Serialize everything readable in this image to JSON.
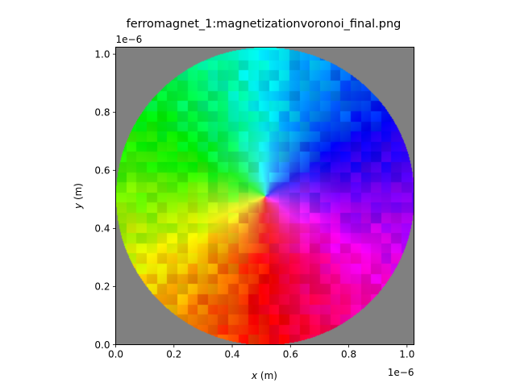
{
  "chart_data": {
    "type": "heatmap",
    "title": "ferromagnet_1:magnetizationvoronoi_final.png",
    "xlabel_var": "x",
    "xlabel_unit": " (m)",
    "ylabel_var": "y",
    "ylabel_unit": " (m)",
    "x_offset_text": "1e−6",
    "y_offset_text": "1e−6",
    "xlim": [
      0,
      1.024
    ],
    "ylim": [
      0,
      1.024
    ],
    "x_ticks": [
      {
        "value": 0.0,
        "label": "0.0"
      },
      {
        "value": 0.2,
        "label": "0.2"
      },
      {
        "value": 0.4,
        "label": "0.4"
      },
      {
        "value": 0.6,
        "label": "0.6"
      },
      {
        "value": 0.8,
        "label": "0.8"
      },
      {
        "value": 1.0,
        "label": "1.0"
      }
    ],
    "y_ticks": [
      {
        "value": 0.0,
        "label": "0.0"
      },
      {
        "value": 0.2,
        "label": "0.2"
      },
      {
        "value": 0.4,
        "label": "0.4"
      },
      {
        "value": 0.6,
        "label": "0.6"
      },
      {
        "value": 0.8,
        "label": "0.8"
      },
      {
        "value": 1.0,
        "label": "1.0"
      }
    ],
    "disk": {
      "center": [
        0.512,
        0.512
      ],
      "radius": 0.512
    },
    "background_color": "#808080",
    "colormap": "hue by in-plane magnetization angle (vortex)",
    "hue_offset_deg": 0,
    "hue_direction": -1,
    "grid": false,
    "legend": "none"
  }
}
